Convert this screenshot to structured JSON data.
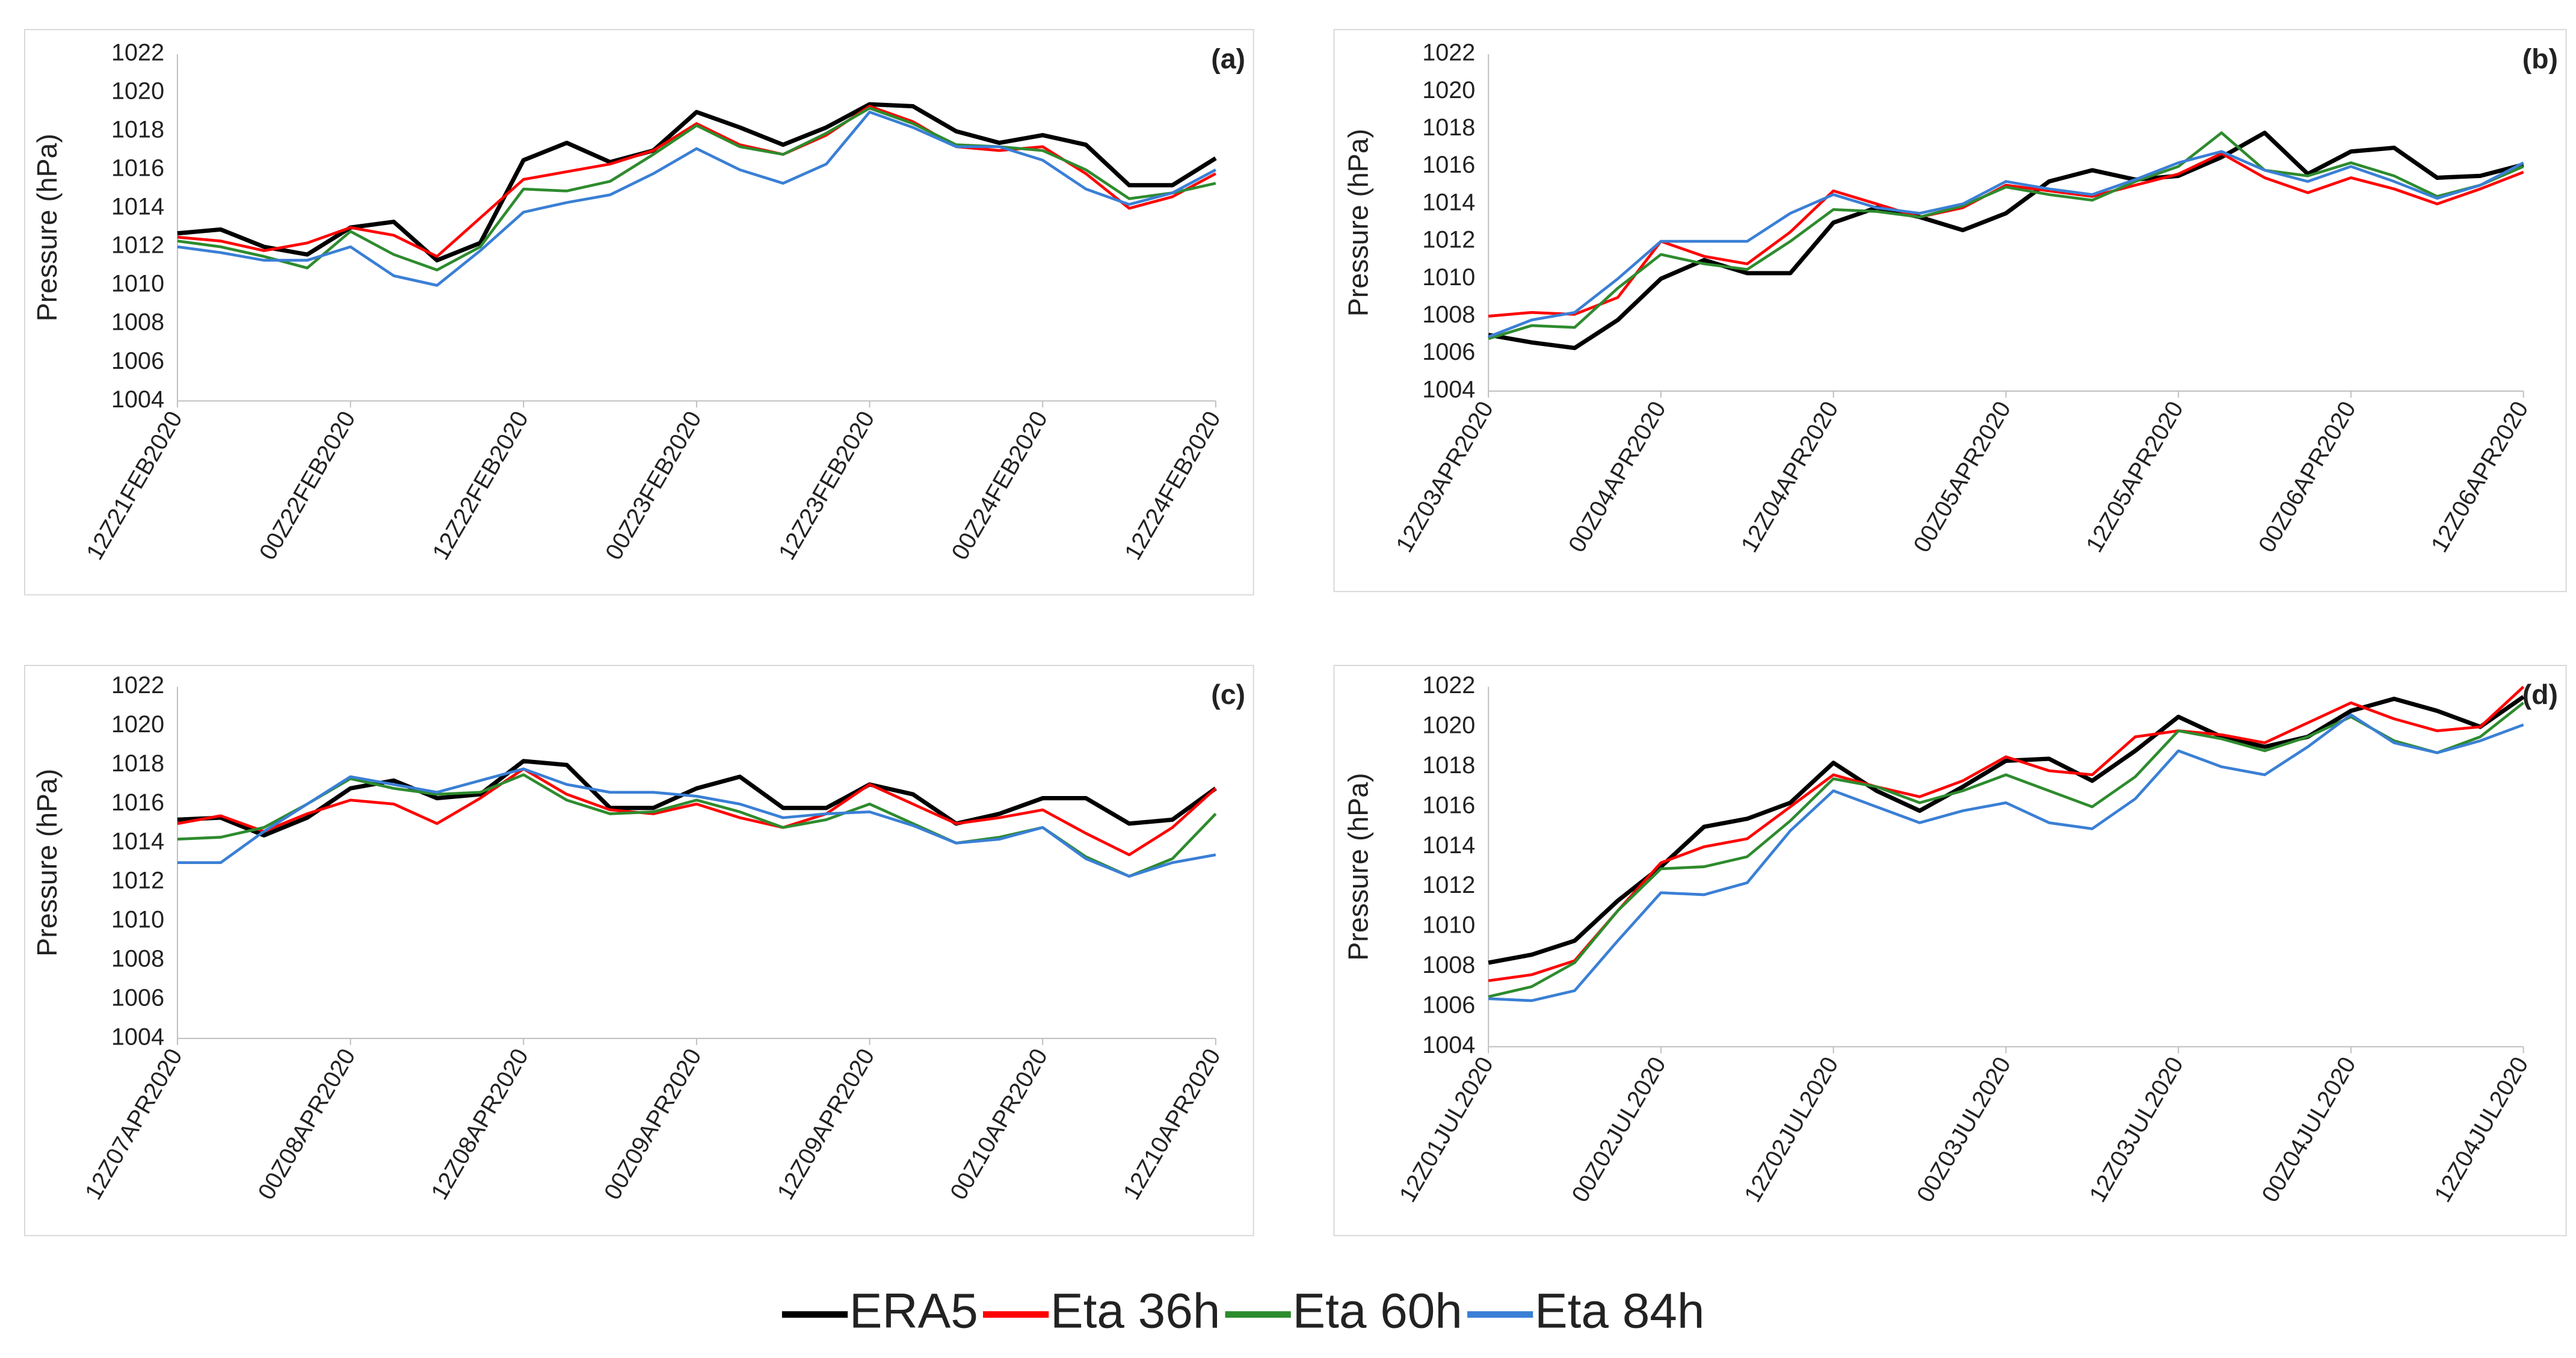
{
  "chart_data": [
    {
      "type": "line",
      "title": "(a)",
      "y_label": "Pressure (hPa)",
      "categories": [
        "12Z21FEB2020",
        null,
        null,
        null,
        "00Z22FEB2020",
        null,
        null,
        null,
        "12Z22FEB2020",
        null,
        null,
        null,
        "00Z23FEB2020",
        null,
        null,
        null,
        "12Z23FEB2020",
        null,
        null,
        null,
        "00Z24FEB2020",
        null,
        null,
        null,
        "12Z24FEB2020"
      ],
      "ylim": [
        1004,
        1022
      ],
      "yticks": [
        1004,
        1006,
        1008,
        1010,
        1012,
        1014,
        1016,
        1018,
        1020,
        1022
      ],
      "series": [
        {
          "values": [
            1012.7,
            1012.9,
            1012.0,
            1011.6,
            1013.0,
            1013.3,
            1011.3,
            1012.2,
            1016.5,
            1017.4,
            1016.4,
            1017.0,
            1019.0,
            1018.2,
            1017.3,
            1018.2,
            1019.4,
            1019.3,
            1018.0,
            1017.4,
            1017.8,
            1017.3,
            1015.2,
            1015.2,
            1016.6
          ]
        },
        {
          "values": [
            1012.5,
            1012.3,
            1011.8,
            1012.2,
            1013.0,
            1012.6,
            1011.5,
            1013.5,
            1015.5,
            1015.9,
            1016.3,
            1017.0,
            1018.4,
            1017.3,
            1016.8,
            1017.8,
            1019.3,
            1018.5,
            1017.2,
            1017.0,
            1017.2,
            1015.8,
            1014.0,
            1014.6,
            1015.8
          ]
        },
        {
          "values": [
            1012.3,
            1012.0,
            1011.5,
            1010.9,
            1012.8,
            1011.6,
            1010.8,
            1012.0,
            1015.0,
            1014.9,
            1015.4,
            1016.8,
            1018.3,
            1017.2,
            1016.8,
            1017.9,
            1019.2,
            1018.4,
            1017.3,
            1017.2,
            1017.0,
            1016.0,
            1014.5,
            1014.8,
            1015.3
          ]
        },
        {
          "values": [
            1012.0,
            1011.7,
            1011.3,
            1011.3,
            1012.0,
            1010.5,
            1010.0,
            1011.8,
            1013.8,
            1014.3,
            1014.7,
            1015.8,
            1017.1,
            1016.0,
            1015.3,
            1016.3,
            1019.0,
            1018.2,
            1017.2,
            1017.2,
            1016.5,
            1015.0,
            1014.2,
            1014.8,
            1016.0
          ]
        }
      ]
    },
    {
      "type": "line",
      "title": "(b)",
      "y_label": "Pressure (hPa)",
      "categories": [
        "12Z03APR2020",
        null,
        null,
        null,
        "00Z04APR2020",
        null,
        null,
        null,
        "12Z04APR2020",
        null,
        null,
        null,
        "00Z05APR2020",
        null,
        null,
        null,
        "12Z05APR2020",
        null,
        null,
        null,
        "00Z06APR2020",
        null,
        null,
        null,
        "12Z06APR2020"
      ],
      "ylim": [
        1004,
        1022
      ],
      "yticks": [
        1004,
        1006,
        1008,
        1010,
        1012,
        1014,
        1016,
        1018,
        1020,
        1022
      ],
      "series": [
        {
          "values": [
            1007.0,
            1006.6,
            1006.3,
            1007.8,
            1010.0,
            1011.0,
            1010.3,
            1010.3,
            1013.0,
            1013.8,
            1013.3,
            1012.6,
            1013.5,
            1015.2,
            1015.8,
            1015.3,
            1015.5,
            1016.5,
            1017.8,
            1015.6,
            1016.8,
            1017.0,
            1015.4,
            1015.5,
            1016.1
          ]
        },
        {
          "values": [
            1008.0,
            1008.2,
            1008.1,
            1009.0,
            1012.0,
            1011.2,
            1010.8,
            1012.5,
            1014.7,
            1014.0,
            1013.3,
            1013.8,
            1015.0,
            1014.7,
            1014.4,
            1015.0,
            1015.6,
            1016.7,
            1015.4,
            1014.6,
            1015.4,
            1014.8,
            1014.0,
            1014.8,
            1015.7
          ]
        },
        {
          "values": [
            1006.8,
            1007.5,
            1007.4,
            1009.5,
            1011.3,
            1010.8,
            1010.5,
            1012.0,
            1013.7,
            1013.6,
            1013.3,
            1013.9,
            1014.9,
            1014.5,
            1014.2,
            1015.2,
            1016.0,
            1017.8,
            1015.8,
            1015.5,
            1016.2,
            1015.5,
            1014.4,
            1015.0,
            1016.0
          ]
        },
        {
          "values": [
            1006.9,
            1007.8,
            1008.2,
            1010.0,
            1012.0,
            1012.0,
            1012.0,
            1013.5,
            1014.5,
            1013.8,
            1013.5,
            1014.0,
            1015.2,
            1014.8,
            1014.5,
            1015.3,
            1016.2,
            1016.8,
            1015.8,
            1015.2,
            1016.0,
            1015.2,
            1014.3,
            1015.0,
            1016.2
          ]
        }
      ]
    },
    {
      "type": "line",
      "title": "(c)",
      "y_label": "Pressure (hPa)",
      "categories": [
        "12Z07APR2020",
        null,
        null,
        null,
        "00Z08APR2020",
        null,
        null,
        null,
        "12Z08APR2020",
        null,
        null,
        null,
        "00Z09APR2020",
        null,
        null,
        null,
        "12Z09APR2020",
        null,
        null,
        null,
        "00Z10APR2020",
        null,
        null,
        null,
        "12Z10APR2020"
      ],
      "ylim": [
        1004,
        1022
      ],
      "yticks": [
        1004,
        1006,
        1008,
        1010,
        1012,
        1014,
        1016,
        1018,
        1020,
        1022
      ],
      "series": [
        {
          "values": [
            1015.2,
            1015.3,
            1014.4,
            1015.3,
            1016.8,
            1017.2,
            1016.3,
            1016.5,
            1018.2,
            1018.0,
            1015.8,
            1015.8,
            1016.8,
            1017.4,
            1015.8,
            1015.8,
            1017.0,
            1016.5,
            1015.0,
            1015.5,
            1016.3,
            1016.3,
            1015.0,
            1015.2,
            1016.8
          ]
        },
        {
          "values": [
            1015.0,
            1015.4,
            1014.6,
            1015.5,
            1016.2,
            1016.0,
            1015.0,
            1016.3,
            1017.8,
            1016.5,
            1015.7,
            1015.5,
            1016.0,
            1015.3,
            1014.8,
            1015.5,
            1017.0,
            1016.0,
            1015.0,
            1015.3,
            1015.7,
            1014.5,
            1013.4,
            1014.8,
            1016.8
          ]
        },
        {
          "values": [
            1014.2,
            1014.3,
            1014.8,
            1016.0,
            1017.3,
            1016.8,
            1016.5,
            1016.6,
            1017.5,
            1016.2,
            1015.5,
            1015.6,
            1016.2,
            1015.6,
            1014.8,
            1015.2,
            1016.0,
            1015.0,
            1014.0,
            1014.3,
            1014.8,
            1013.3,
            1012.3,
            1013.2,
            1015.5
          ]
        },
        {
          "values": [
            1013.0,
            1013.0,
            1014.6,
            1016.0,
            1017.4,
            1017.0,
            1016.6,
            1017.2,
            1017.8,
            1017.0,
            1016.6,
            1016.6,
            1016.4,
            1016.0,
            1015.3,
            1015.5,
            1015.6,
            1014.9,
            1014.0,
            1014.2,
            1014.8,
            1013.2,
            1012.3,
            1013.0,
            1013.4
          ]
        }
      ]
    },
    {
      "type": "line",
      "title": "(d)",
      "y_label": "Pressure (hPa)",
      "categories": [
        "12Z01JUL2020",
        null,
        null,
        null,
        "00Z02JUL2020",
        null,
        null,
        null,
        "12Z02JUL2020",
        null,
        null,
        null,
        "00Z03JUL2020",
        null,
        null,
        null,
        "12Z03JUL2020",
        null,
        null,
        null,
        "00Z04JUL2020",
        null,
        null,
        null,
        "12Z04JUL2020"
      ],
      "ylim": [
        1004,
        1022
      ],
      "yticks": [
        1004,
        1006,
        1008,
        1010,
        1012,
        1014,
        1016,
        1018,
        1020,
        1022
      ],
      "series": [
        {
          "values": [
            1008.2,
            1008.6,
            1009.3,
            1011.3,
            1013.0,
            1015.0,
            1015.4,
            1016.2,
            1018.2,
            1016.8,
            1015.8,
            1017.0,
            1018.3,
            1018.4,
            1017.3,
            1018.8,
            1020.5,
            1019.5,
            1019.0,
            1019.5,
            1020.8,
            1021.4,
            1020.8,
            1020.0,
            1021.5
          ]
        },
        {
          "values": [
            1007.3,
            1007.6,
            1008.3,
            1010.8,
            1013.2,
            1014.0,
            1014.4,
            1016.0,
            1017.6,
            1017.0,
            1016.5,
            1017.3,
            1018.5,
            1017.8,
            1017.6,
            1019.5,
            1019.8,
            1019.6,
            1019.2,
            1020.2,
            1021.2,
            1020.4,
            1019.8,
            1020.0,
            1022.0
          ]
        },
        {
          "values": [
            1006.5,
            1007.0,
            1008.2,
            1010.8,
            1012.9,
            1013.0,
            1013.5,
            1015.3,
            1017.4,
            1017.0,
            1016.2,
            1016.8,
            1017.6,
            1016.8,
            1016.0,
            1017.5,
            1019.8,
            1019.4,
            1018.8,
            1019.5,
            1020.5,
            1019.3,
            1018.7,
            1019.5,
            1021.2
          ]
        },
        {
          "values": [
            1006.4,
            1006.3,
            1006.8,
            1009.3,
            1011.7,
            1011.6,
            1012.2,
            1014.8,
            1016.8,
            1016.0,
            1015.2,
            1015.8,
            1016.2,
            1015.2,
            1014.9,
            1016.4,
            1018.8,
            1018.0,
            1017.6,
            1019.0,
            1020.6,
            1019.2,
            1018.7,
            1019.3,
            1020.1
          ]
        }
      ]
    }
  ],
  "legend": [
    {
      "name": "ERA5",
      "color": "#000000"
    },
    {
      "name": "Eta 36h",
      "color": "#ff0000"
    },
    {
      "name": "Eta 60h",
      "color": "#2e8b2e"
    },
    {
      "name": "Eta 84h",
      "color": "#3a7fd5"
    }
  ]
}
